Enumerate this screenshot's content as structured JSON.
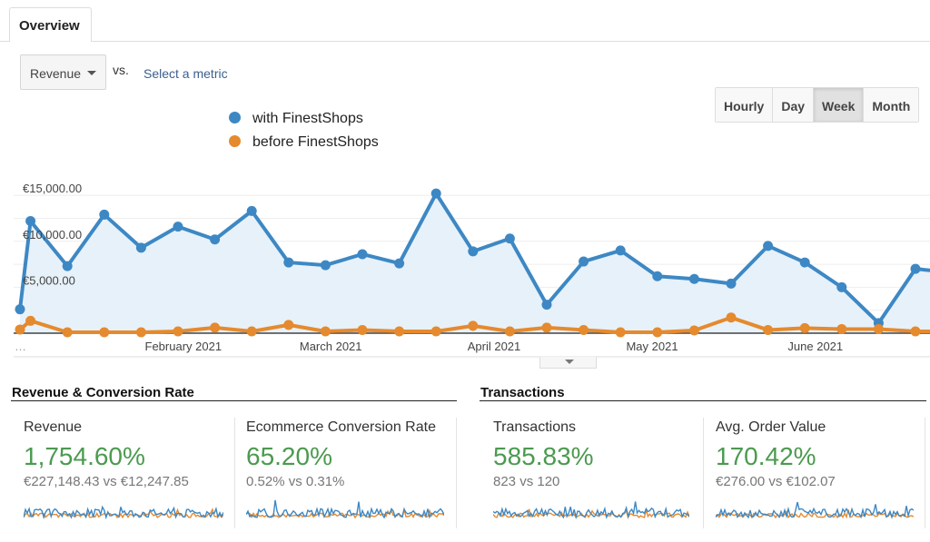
{
  "tabs": [
    {
      "label": "Overview",
      "active": true
    }
  ],
  "metric_selector": {
    "selected": "Revenue",
    "vs_label": "vs.",
    "secondary_link": "Select a metric"
  },
  "granularity": {
    "options": [
      "Hourly",
      "Day",
      "Week",
      "Month"
    ],
    "selected": "Week"
  },
  "chart_data": {
    "type": "line",
    "x": [
      "2021-01-01",
      "2021-01-03",
      "2021-01-10",
      "2021-01-17",
      "2021-01-24",
      "2021-01-31",
      "2021-02-07",
      "2021-02-14",
      "2021-02-21",
      "2021-02-28",
      "2021-03-07",
      "2021-03-14",
      "2021-03-21",
      "2021-03-28",
      "2021-04-04",
      "2021-04-11",
      "2021-04-18",
      "2021-04-25",
      "2021-05-02",
      "2021-05-09",
      "2021-05-16",
      "2021-05-23",
      "2021-05-30",
      "2021-06-06",
      "2021-06-13",
      "2021-06-20",
      "2021-06-27"
    ],
    "series": [
      {
        "name": "with FinestShops",
        "color": "#3d88c4",
        "fill": true,
        "values": [
          2600,
          12200,
          7300,
          12900,
          9300,
          11600,
          10200,
          13300,
          7700,
          7400,
          8600,
          7600,
          15200,
          8900,
          10300,
          3100,
          7800,
          9000,
          6200,
          5900,
          5400,
          9500,
          7700,
          5000,
          1100,
          7000,
          6600
        ]
      },
      {
        "name": "before FinestShops",
        "color": "#e58a2e",
        "fill": false,
        "values": [
          400,
          1350,
          100,
          100,
          100,
          200,
          600,
          200,
          900,
          200,
          350,
          200,
          200,
          800,
          200,
          600,
          350,
          100,
          100,
          300,
          1700,
          350,
          550,
          450,
          450,
          200,
          200
        ]
      }
    ],
    "yticks": [
      "€5,000.00",
      "€10,000.00",
      "€15,000.00"
    ],
    "ytick_values": [
      5000,
      10000,
      15000
    ],
    "xticks": [
      {
        "label": "…",
        "date": "2021-01-01"
      },
      {
        "label": "February 2021",
        "date": "2021-02-01"
      },
      {
        "label": "March 2021",
        "date": "2021-03-01"
      },
      {
        "label": "April 2021",
        "date": "2021-04-01"
      },
      {
        "label": "May 2021",
        "date": "2021-05-01"
      },
      {
        "label": "June 2021",
        "date": "2021-06-01"
      }
    ],
    "ylim": [
      0,
      16500
    ],
    "grid": true,
    "legend": "top-left"
  },
  "sections": [
    {
      "title": "Revenue & Conversion Rate",
      "cards": [
        {
          "label": "Revenue",
          "change": "1,754.60%",
          "comparison": "€227,148.43 vs €12,247.85"
        },
        {
          "label": "Ecommerce Conversion Rate",
          "change": "65.20%",
          "comparison": "0.52% vs 0.31%"
        }
      ]
    },
    {
      "title": "Transactions",
      "cards": [
        {
          "label": "Transactions",
          "change": "585.83%",
          "comparison": "823 vs 120"
        },
        {
          "label": "Avg. Order Value",
          "change": "170.42%",
          "comparison": "€276.00 vs €102.07"
        }
      ]
    }
  ],
  "colors": {
    "positive": "#4b9a4f",
    "link": "#3d5f8f",
    "series_blue": "#3d88c4",
    "series_orange": "#e58a2e"
  }
}
